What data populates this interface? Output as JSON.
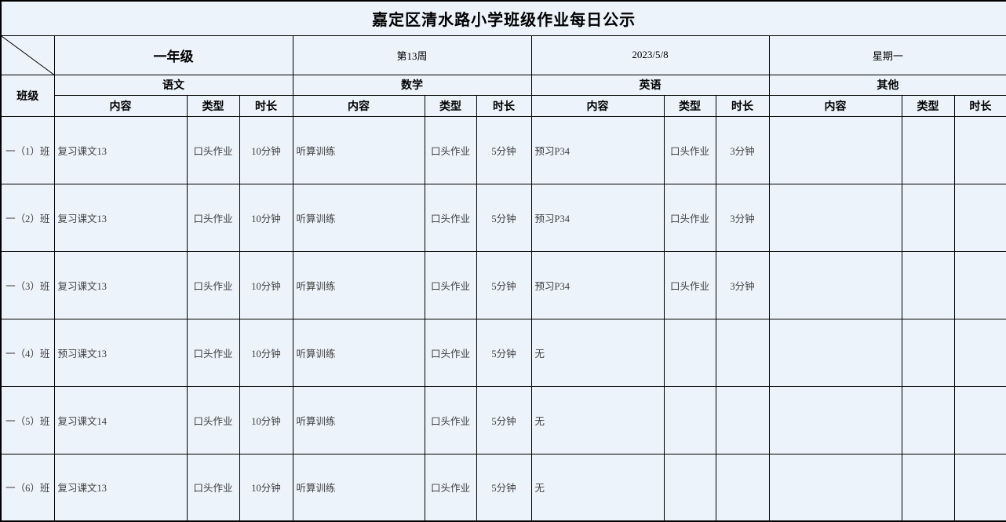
{
  "title": "嘉定区清水路小学班级作业每日公示",
  "header": {
    "grade": "一年级",
    "week": "第13周",
    "date": "2023/5/8",
    "weekday": "星期一",
    "class_label": "班级",
    "subjects": [
      "语文",
      "数学",
      "英语",
      "其他"
    ],
    "sub_columns": [
      "内容",
      "类型",
      "时长"
    ]
  },
  "rows": [
    {
      "class_name": "一（1）班",
      "subjects": [
        {
          "content": "复习课文13",
          "type": "口头作业",
          "duration": "10分钟"
        },
        {
          "content": "听算训练",
          "type": "口头作业",
          "duration": "5分钟"
        },
        {
          "content": "预习P34",
          "type": "口头作业",
          "duration": "3分钟"
        },
        {
          "content": "",
          "type": "",
          "duration": ""
        }
      ]
    },
    {
      "class_name": "一（2）班",
      "subjects": [
        {
          "content": "复习课文13",
          "type": "口头作业",
          "duration": "10分钟"
        },
        {
          "content": "听算训练",
          "type": "口头作业",
          "duration": "5分钟"
        },
        {
          "content": "预习P34",
          "type": "口头作业",
          "duration": "3分钟"
        },
        {
          "content": "",
          "type": "",
          "duration": ""
        }
      ]
    },
    {
      "class_name": "一（3）班",
      "subjects": [
        {
          "content": "复习课文13",
          "type": "口头作业",
          "duration": "10分钟"
        },
        {
          "content": "听算训练",
          "type": "口头作业",
          "duration": "5分钟"
        },
        {
          "content": "预习P34",
          "type": "口头作业",
          "duration": "3分钟"
        },
        {
          "content": "",
          "type": "",
          "duration": ""
        }
      ]
    },
    {
      "class_name": "一（4）班",
      "subjects": [
        {
          "content": "预习课文13",
          "type": "口头作业",
          "duration": "10分钟"
        },
        {
          "content": "听算训练",
          "type": "口头作业",
          "duration": "5分钟"
        },
        {
          "content": "无",
          "type": "",
          "duration": ""
        },
        {
          "content": "",
          "type": "",
          "duration": ""
        }
      ]
    },
    {
      "class_name": "一（5）班",
      "subjects": [
        {
          "content": "复习课文14",
          "type": "口头作业",
          "duration": "10分钟"
        },
        {
          "content": "听算训练",
          "type": "口头作业",
          "duration": "5分钟"
        },
        {
          "content": "无",
          "type": "",
          "duration": ""
        },
        {
          "content": "",
          "type": "",
          "duration": ""
        }
      ]
    },
    {
      "class_name": "一（6）班",
      "subjects": [
        {
          "content": "复习课文13",
          "type": "口头作业",
          "duration": "10分钟"
        },
        {
          "content": "听算训练",
          "type": "口头作业",
          "duration": "5分钟"
        },
        {
          "content": "无",
          "type": "",
          "duration": ""
        },
        {
          "content": "",
          "type": "",
          "duration": ""
        }
      ]
    }
  ]
}
